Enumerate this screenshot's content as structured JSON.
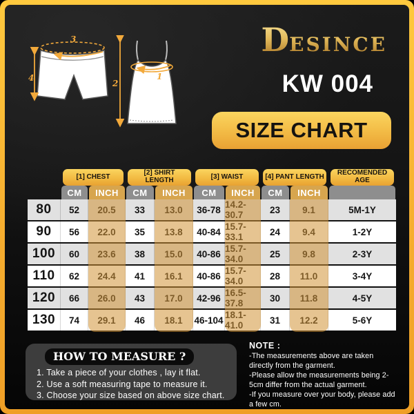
{
  "brand": {
    "logo_initial": "D",
    "logo_rest": "ESINCE"
  },
  "product_code": "KW 004",
  "banner_title": "SIZE CHART",
  "diagram": {
    "labels": {
      "chest": "1",
      "shirt_length": "2",
      "waist": "3",
      "pant_length": "4"
    }
  },
  "table": {
    "groups": [
      {
        "label": "[1] CHEST"
      },
      {
        "label": "[2] SHIRT LENGTH"
      },
      {
        "label": "[3] WAIST"
      },
      {
        "label": "[4] PANT LENGTH"
      },
      {
        "label": "RECOMENDED AGE"
      }
    ],
    "units": {
      "cm": "CM",
      "inch": "INCH"
    },
    "rows": [
      {
        "size": "80",
        "chest_cm": "52",
        "chest_inch": "20.5",
        "shirt_cm": "33",
        "shirt_inch": "13.0",
        "waist_cm": "36-78",
        "waist_inch": "14.2-30.7",
        "pant_cm": "23",
        "pant_inch": "9.1",
        "age": "5M-1Y"
      },
      {
        "size": "90",
        "chest_cm": "56",
        "chest_inch": "22.0",
        "shirt_cm": "35",
        "shirt_inch": "13.8",
        "waist_cm": "40-84",
        "waist_inch": "15.7-33.1",
        "pant_cm": "24",
        "pant_inch": "9.4",
        "age": "1-2Y"
      },
      {
        "size": "100",
        "chest_cm": "60",
        "chest_inch": "23.6",
        "shirt_cm": "38",
        "shirt_inch": "15.0",
        "waist_cm": "40-86",
        "waist_inch": "15.7-34.0",
        "pant_cm": "25",
        "pant_inch": "9.8",
        "age": "2-3Y"
      },
      {
        "size": "110",
        "chest_cm": "62",
        "chest_inch": "24.4",
        "shirt_cm": "41",
        "shirt_inch": "16.1",
        "waist_cm": "40-86",
        "waist_inch": "15.7-34.0",
        "pant_cm": "28",
        "pant_inch": "11.0",
        "age": "3-4Y"
      },
      {
        "size": "120",
        "chest_cm": "66",
        "chest_inch": "26.0",
        "shirt_cm": "43",
        "shirt_inch": "17.0",
        "waist_cm": "42-96",
        "waist_inch": "16.5-37.8",
        "pant_cm": "30",
        "pant_inch": "11.8",
        "age": "4-5Y"
      },
      {
        "size": "130",
        "chest_cm": "74",
        "chest_inch": "29.1",
        "shirt_cm": "46",
        "shirt_inch": "18.1",
        "waist_cm": "46-104",
        "waist_inch": "18.1-41.0",
        "pant_cm": "31",
        "pant_inch": "12.2",
        "age": "5-6Y"
      }
    ]
  },
  "how_to_measure": {
    "title": "HOW TO MEASURE ?",
    "step1": "1. Take a piece of your clothes , lay it flat.",
    "step2": "2. Use a soft measuring tape to measure it.",
    "step3": "3. Choose your size based on above size chart."
  },
  "note": {
    "title": "NOTE :",
    "line1": "-The measurements above are taken directly from the garment.",
    "line2": "-Please allow the measurements being 2-5cm differ from the actual garment.",
    "line3": "-If you measure over your body, please add a few cm."
  }
}
